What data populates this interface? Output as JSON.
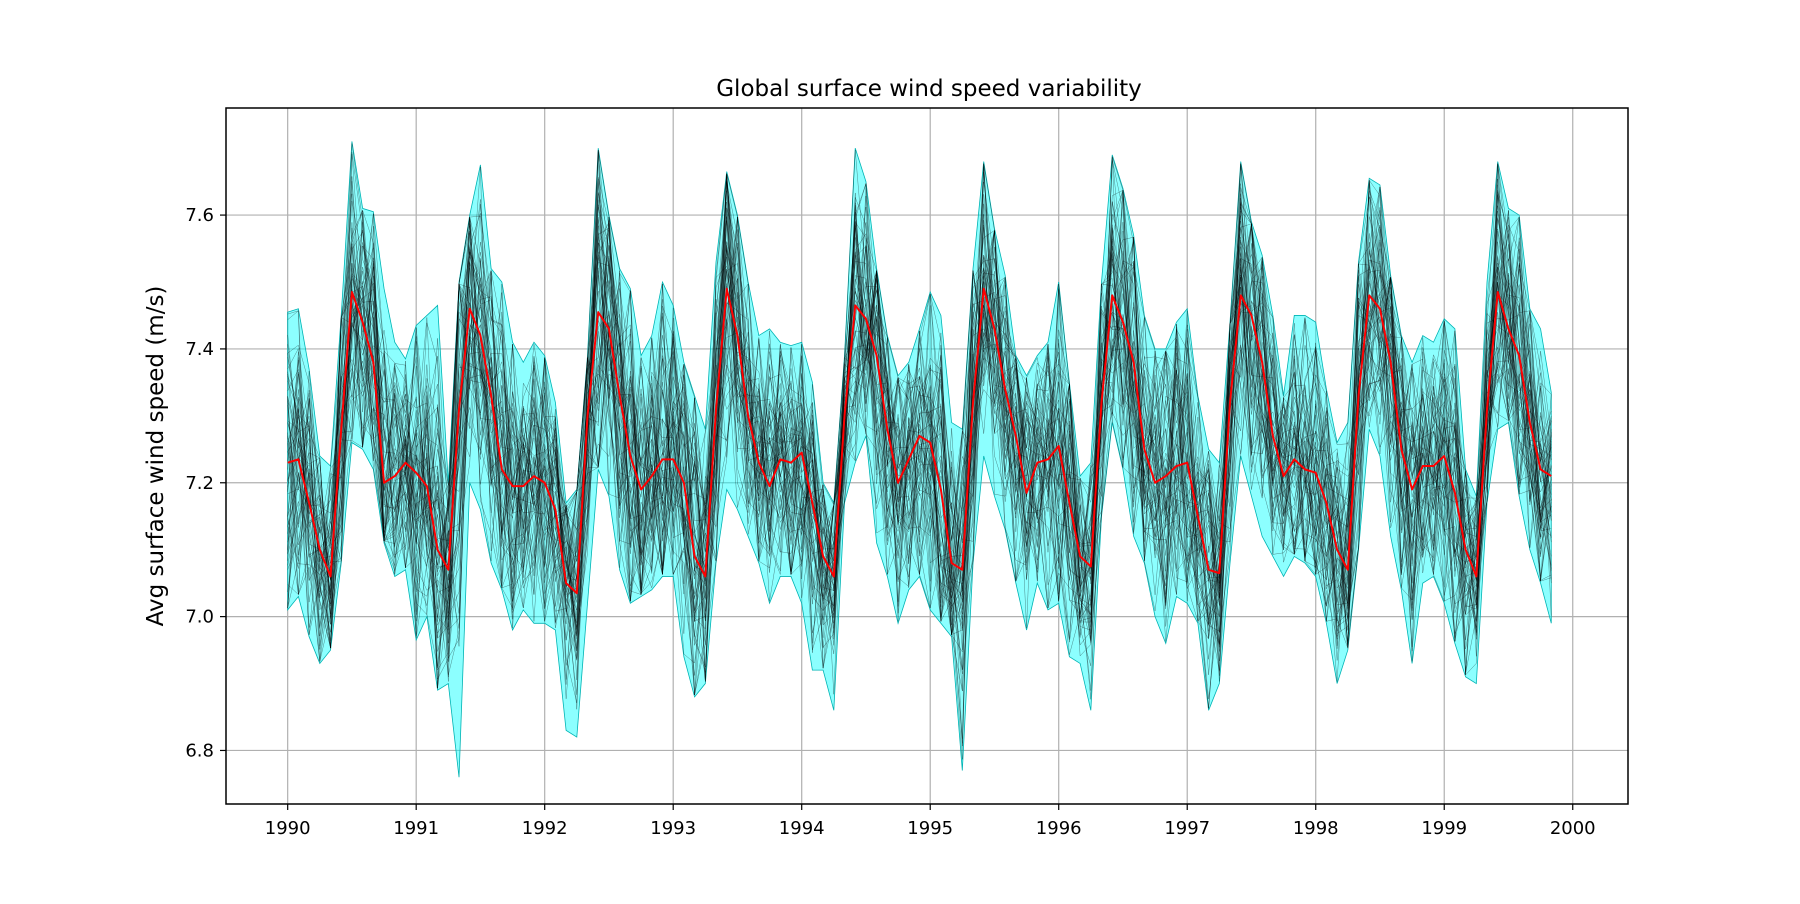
{
  "chart_data": {
    "type": "line",
    "title": "Global surface wind speed variability",
    "xlabel": "",
    "ylabel": "Avg surface wind speed (m/s)",
    "xlim": [
      1989.52,
      2000.43
    ],
    "ylim": [
      6.72,
      7.76
    ],
    "x_ticks": [
      1990,
      1991,
      1992,
      1993,
      1994,
      1995,
      1996,
      1997,
      1998,
      1999,
      2000
    ],
    "x_tick_labels": [
      "1990",
      "1991",
      "1992",
      "1993",
      "1994",
      "1995",
      "1996",
      "1997",
      "1998",
      "1999",
      "2000"
    ],
    "y_ticks": [
      6.8,
      7.0,
      7.2,
      7.4,
      7.6
    ],
    "y_tick_labels": [
      "6.8",
      "7.0",
      "7.2",
      "7.4",
      "7.6"
    ],
    "grid": true,
    "x_start": 1990.0,
    "x_step": 0.08333,
    "series": [
      {
        "role": "mean",
        "values": [
          7.23,
          7.235,
          7.17,
          7.1,
          7.06,
          7.28,
          7.485,
          7.44,
          7.38,
          7.2,
          7.21,
          7.23,
          7.215,
          7.195,
          7.1,
          7.07,
          7.31,
          7.46,
          7.42,
          7.33,
          7.22,
          7.195,
          7.195,
          7.21,
          7.2,
          7.16,
          7.05,
          7.035,
          7.3,
          7.455,
          7.43,
          7.33,
          7.24,
          7.19,
          7.21,
          7.235,
          7.235,
          7.2,
          7.09,
          7.06,
          7.31,
          7.49,
          7.42,
          7.3,
          7.23,
          7.195,
          7.235,
          7.23,
          7.245,
          7.17,
          7.09,
          7.06,
          7.3,
          7.465,
          7.445,
          7.39,
          7.28,
          7.2,
          7.235,
          7.27,
          7.26,
          7.19,
          7.08,
          7.07,
          7.32,
          7.49,
          7.43,
          7.34,
          7.27,
          7.185,
          7.23,
          7.235,
          7.255,
          7.17,
          7.09,
          7.075,
          7.32,
          7.48,
          7.44,
          7.38,
          7.25,
          7.2,
          7.21,
          7.225,
          7.23,
          7.15,
          7.07,
          7.065,
          7.32,
          7.48,
          7.45,
          7.38,
          7.27,
          7.21,
          7.235,
          7.22,
          7.215,
          7.17,
          7.1,
          7.07,
          7.33,
          7.48,
          7.46,
          7.38,
          7.25,
          7.19,
          7.225,
          7.225,
          7.24,
          7.185,
          7.1,
          7.06,
          7.31,
          7.485,
          7.43,
          7.39,
          7.29,
          7.22,
          7.21
        ]
      },
      {
        "role": "upper",
        "values": [
          7.455,
          7.46,
          7.37,
          7.24,
          7.225,
          7.45,
          7.71,
          7.61,
          7.605,
          7.49,
          7.41,
          7.385,
          7.435,
          7.45,
          7.465,
          7.2,
          7.5,
          7.6,
          7.675,
          7.52,
          7.5,
          7.41,
          7.38,
          7.41,
          7.39,
          7.32,
          7.17,
          7.19,
          7.39,
          7.7,
          7.6,
          7.52,
          7.49,
          7.39,
          7.42,
          7.5,
          7.465,
          7.38,
          7.33,
          7.28,
          7.53,
          7.665,
          7.6,
          7.5,
          7.42,
          7.43,
          7.41,
          7.405,
          7.41,
          7.35,
          7.2,
          7.17,
          7.39,
          7.7,
          7.65,
          7.52,
          7.42,
          7.36,
          7.38,
          7.43,
          7.485,
          7.45,
          7.29,
          7.28,
          7.52,
          7.68,
          7.58,
          7.51,
          7.39,
          7.36,
          7.39,
          7.41,
          7.5,
          7.35,
          7.21,
          7.23,
          7.5,
          7.69,
          7.64,
          7.57,
          7.45,
          7.4,
          7.4,
          7.44,
          7.46,
          7.33,
          7.25,
          7.23,
          7.44,
          7.68,
          7.59,
          7.54,
          7.45,
          7.33,
          7.45,
          7.45,
          7.44,
          7.34,
          7.26,
          7.29,
          7.53,
          7.655,
          7.645,
          7.51,
          7.42,
          7.38,
          7.42,
          7.41,
          7.445,
          7.43,
          7.22,
          7.18,
          7.5,
          7.68,
          7.61,
          7.6,
          7.46,
          7.43,
          7.335
        ]
      },
      {
        "role": "lower",
        "values": [
          7.01,
          7.03,
          6.97,
          6.93,
          6.95,
          7.08,
          7.26,
          7.25,
          7.22,
          7.11,
          7.06,
          7.07,
          6.965,
          7.0,
          6.89,
          6.9,
          6.76,
          7.2,
          7.16,
          7.08,
          7.04,
          6.98,
          7.01,
          6.99,
          6.99,
          6.98,
          6.83,
          6.82,
          7.02,
          7.22,
          7.18,
          7.07,
          7.02,
          7.03,
          7.04,
          7.06,
          7.06,
          6.94,
          6.88,
          6.9,
          7.08,
          7.19,
          7.16,
          7.12,
          7.08,
          7.02,
          7.06,
          7.06,
          7.02,
          6.92,
          6.92,
          6.86,
          7.17,
          7.23,
          7.27,
          7.11,
          7.06,
          6.99,
          7.04,
          7.06,
          7.01,
          6.99,
          6.97,
          6.77,
          7.08,
          7.24,
          7.18,
          7.13,
          7.05,
          6.98,
          7.05,
          7.01,
          7.02,
          6.94,
          6.93,
          6.86,
          7.15,
          7.29,
          7.22,
          7.12,
          7.08,
          7.0,
          6.96,
          7.03,
          7.02,
          6.99,
          6.86,
          6.9,
          7.08,
          7.24,
          7.18,
          7.12,
          7.09,
          7.06,
          7.09,
          7.08,
          7.06,
          6.99,
          6.9,
          6.95,
          7.1,
          7.28,
          7.24,
          7.12,
          7.04,
          6.93,
          7.05,
          7.06,
          7.02,
          6.96,
          6.91,
          6.9,
          7.17,
          7.28,
          7.29,
          7.18,
          7.1,
          7.05,
          6.99
        ]
      }
    ],
    "ensemble": {
      "member_count": 60,
      "color": "#000000",
      "opacity": 0.45
    },
    "colors": {
      "mean": "#ff0000",
      "band_fill": "#00ffff",
      "band_opacity": 0.45,
      "band_edge": "#00b4b4",
      "grid": "#b0b0b0",
      "axes": "#000000"
    }
  }
}
